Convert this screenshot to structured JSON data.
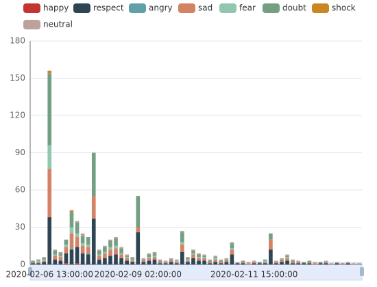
{
  "chart_data": {
    "type": "stacked_bar",
    "categories": [
      null,
      null,
      null,
      "2020-02-06 13:00:00",
      null,
      null,
      null,
      null,
      null,
      null,
      null,
      null,
      null,
      null,
      null,
      null,
      null,
      null,
      null,
      "2020-02-09 02:00:00",
      null,
      null,
      null,
      null,
      null,
      null,
      null,
      null,
      null,
      null,
      null,
      null,
      null,
      null,
      null,
      null,
      null,
      null,
      null,
      null,
      "2020-02-11 15:00:00",
      null,
      null,
      null,
      null,
      null,
      null,
      null,
      null,
      null,
      null,
      null,
      null,
      null,
      null,
      null,
      null,
      null,
      null,
      null
    ],
    "series": [
      {
        "name": "happy",
        "color": "#c23531",
        "values": [
          0,
          0,
          0,
          0,
          0,
          0,
          1,
          0,
          1,
          0,
          0,
          0,
          0,
          0,
          0,
          0,
          0,
          0,
          0,
          0,
          0,
          0,
          0,
          0,
          0,
          0,
          0,
          0,
          0,
          0,
          0,
          0,
          0,
          0,
          0,
          0,
          0,
          0,
          0,
          0,
          0,
          0,
          0,
          0,
          0,
          0,
          0,
          0,
          0,
          0,
          0,
          0,
          0,
          0,
          0,
          0,
          0,
          0,
          0,
          0
        ]
      },
      {
        "name": "respect",
        "color": "#2f4554",
        "values": [
          1,
          1,
          2,
          38,
          4,
          3,
          8,
          12,
          13,
          9,
          8,
          37,
          4,
          5,
          7,
          8,
          5,
          3,
          2,
          26,
          2,
          3,
          4,
          1,
          1,
          2,
          1,
          10,
          2,
          5,
          3,
          3,
          1,
          2,
          1,
          2,
          8,
          1,
          1,
          0,
          1,
          1,
          1,
          12,
          1,
          2,
          3,
          1,
          1,
          1,
          1,
          0,
          1,
          1,
          0,
          1,
          0,
          1,
          0,
          0
        ]
      },
      {
        "name": "angry",
        "color": "#61a0a8",
        "values": [
          0,
          0,
          0,
          0,
          0,
          0,
          0,
          1,
          0,
          0,
          1,
          0,
          0,
          0,
          0,
          0,
          0,
          0,
          0,
          0,
          0,
          0,
          0,
          0,
          0,
          0,
          0,
          0,
          0,
          0,
          0,
          0,
          0,
          0,
          0,
          0,
          0,
          0,
          0,
          0,
          0,
          0,
          0,
          0,
          0,
          0,
          0,
          0,
          0,
          0,
          0,
          0,
          0,
          0,
          0,
          0,
          0,
          0,
          0,
          0
        ]
      },
      {
        "name": "sad",
        "color": "#d48265",
        "values": [
          1,
          1,
          1,
          39,
          3,
          3,
          5,
          12,
          8,
          6,
          5,
          18,
          3,
          4,
          5,
          5,
          3,
          2,
          1,
          4,
          1,
          2,
          2,
          1,
          1,
          1,
          1,
          6,
          1,
          3,
          2,
          2,
          1,
          2,
          1,
          1,
          4,
          0,
          1,
          1,
          1,
          0,
          1,
          8,
          1,
          1,
          2,
          1,
          1,
          0,
          1,
          1,
          0,
          1,
          0,
          0,
          1,
          0,
          0,
          0
        ]
      },
      {
        "name": "fear",
        "color": "#91c7ae",
        "values": [
          0,
          1,
          1,
          19,
          1,
          1,
          2,
          5,
          3,
          2,
          2,
          0,
          1,
          1,
          2,
          2,
          1,
          1,
          1,
          0,
          0,
          1,
          1,
          0,
          0,
          0,
          1,
          2,
          1,
          1,
          1,
          1,
          0,
          1,
          0,
          0,
          1,
          0,
          0,
          0,
          0,
          0,
          1,
          0,
          0,
          0,
          1,
          0,
          0,
          0,
          0,
          0,
          0,
          0,
          0,
          0,
          0,
          0,
          0,
          0
        ]
      },
      {
        "name": "doubt",
        "color": "#749f83",
        "values": [
          1,
          1,
          1,
          58,
          3,
          2,
          4,
          12,
          9,
          6,
          6,
          35,
          3,
          4,
          5,
          6,
          4,
          1,
          1,
          25,
          1,
          2,
          2,
          1,
          0,
          1,
          0,
          8,
          1,
          2,
          2,
          1,
          1,
          1,
          1,
          1,
          4,
          0,
          1,
          0,
          0,
          1,
          1,
          5,
          0,
          1,
          1,
          1,
          0,
          1,
          1,
          0,
          1,
          0,
          0,
          0,
          0,
          0,
          0,
          0
        ]
      },
      {
        "name": "shock",
        "color": "#ca8622",
        "values": [
          0,
          0,
          0,
          2,
          0,
          0,
          0,
          1,
          0,
          0,
          0,
          0,
          0,
          0,
          0,
          0,
          0,
          0,
          0,
          0,
          0,
          0,
          0,
          0,
          0,
          0,
          0,
          0,
          0,
          0,
          0,
          0,
          0,
          0,
          0,
          0,
          0,
          0,
          0,
          0,
          0,
          0,
          0,
          0,
          0,
          0,
          0,
          0,
          0,
          0,
          0,
          0,
          0,
          0,
          0,
          0,
          0,
          0,
          0,
          0
        ]
      },
      {
        "name": "neutral",
        "color": "#bda29a",
        "values": [
          0,
          0,
          1,
          0,
          1,
          1,
          0,
          1,
          1,
          2,
          0,
          0,
          1,
          1,
          1,
          1,
          1,
          1,
          1,
          0,
          1,
          1,
          1,
          1,
          1,
          1,
          1,
          1,
          1,
          1,
          1,
          1,
          1,
          1,
          1,
          1,
          1,
          1,
          0,
          1,
          1,
          0,
          0,
          0,
          1,
          1,
          1,
          1,
          1,
          0,
          0,
          1,
          0,
          1,
          1,
          1,
          0,
          1,
          1,
          1
        ]
      }
    ],
    "ylim": [
      0,
      180
    ],
    "yticks": [
      0,
      30,
      60,
      90,
      120,
      150,
      180
    ],
    "grid": true
  }
}
